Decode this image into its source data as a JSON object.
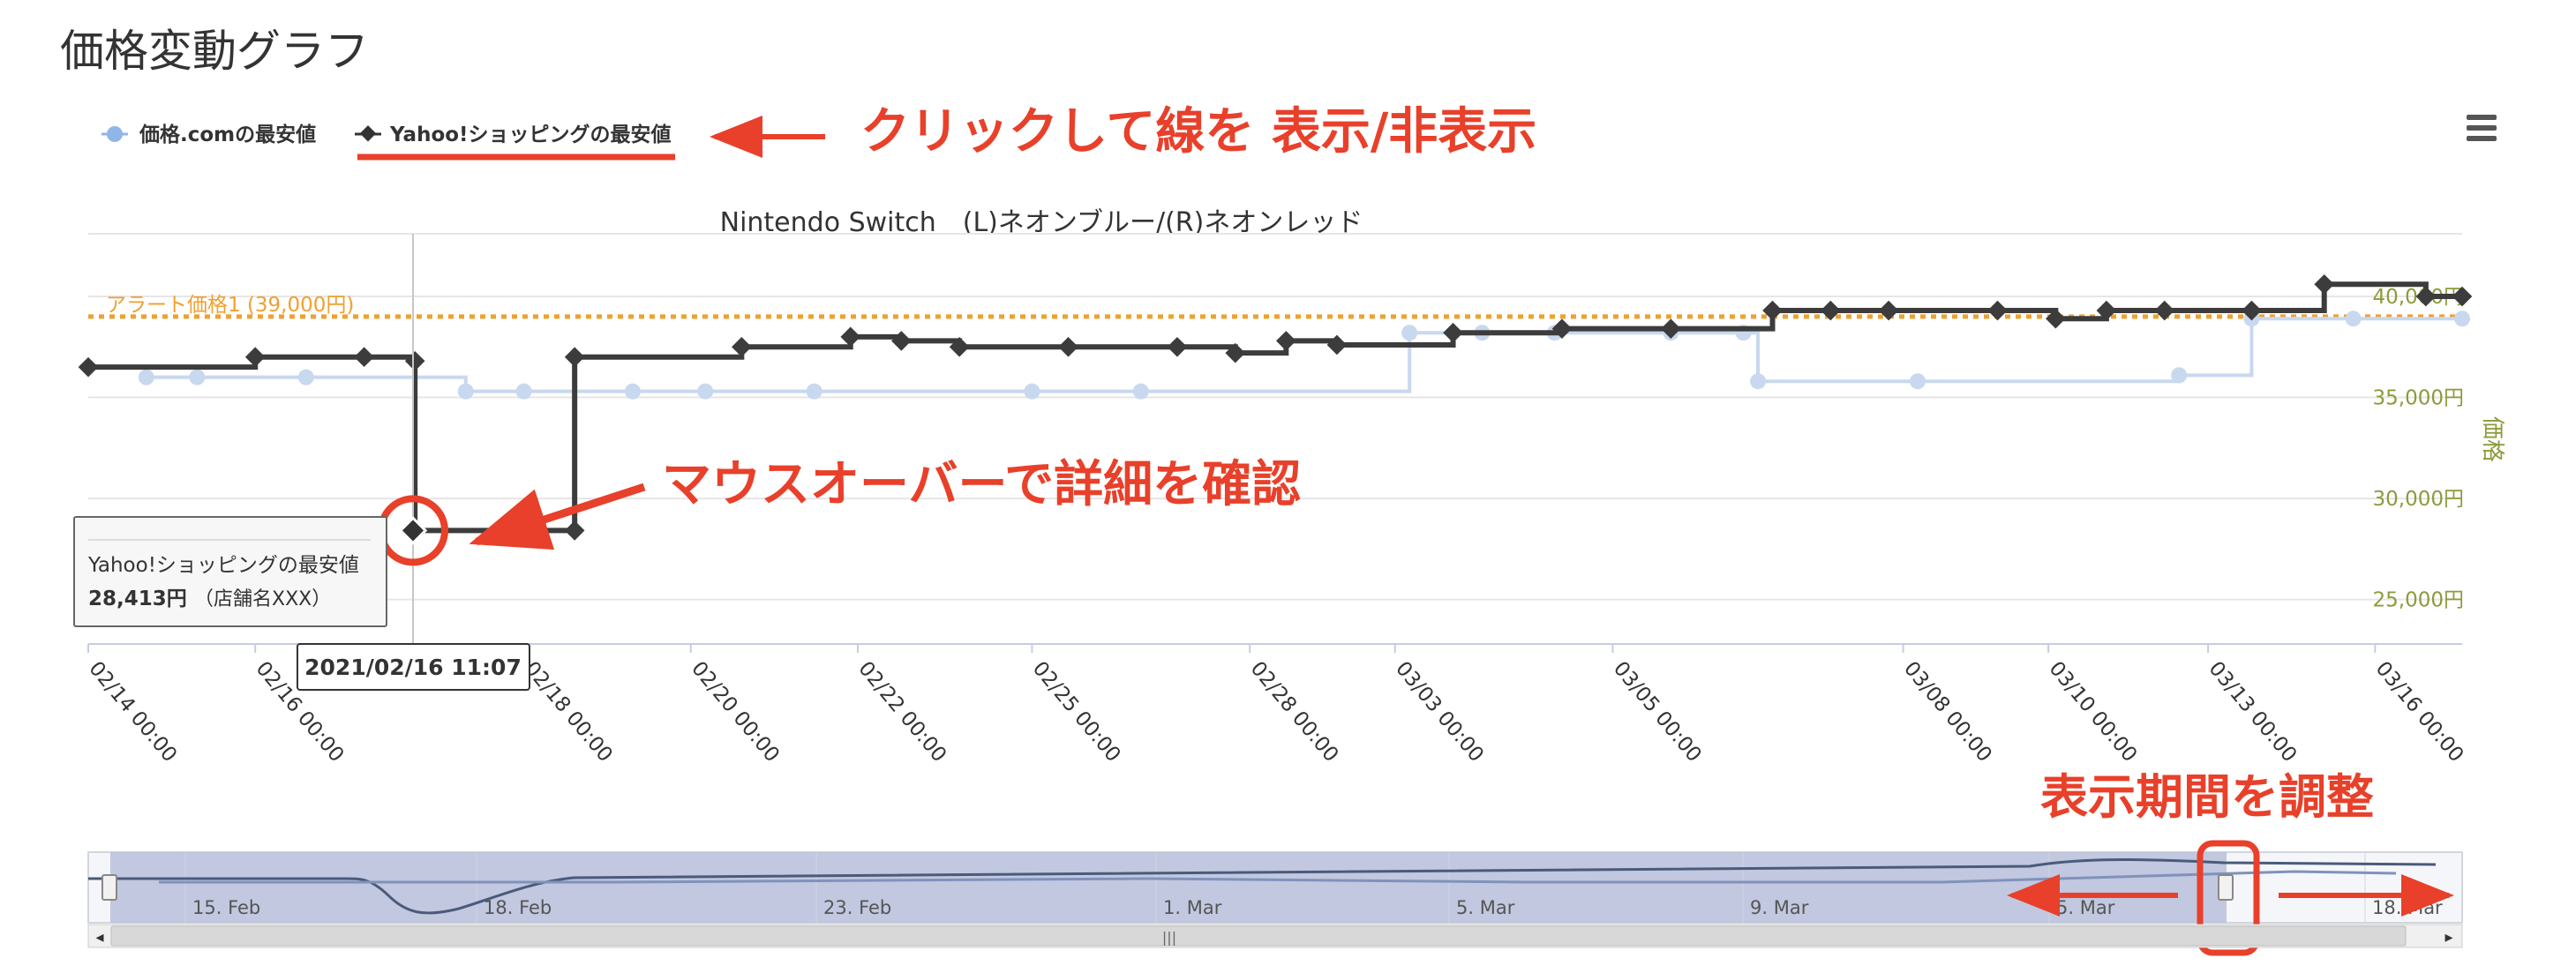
{
  "page": {
    "title": "価格変動グラフ"
  },
  "legend": {
    "items": [
      {
        "label": "価格.comの最安値",
        "color": "#8fb6e8"
      },
      {
        "label": "Yahoo!ショッピングの最安値",
        "color": "#333333"
      }
    ]
  },
  "annotations": {
    "toggle": "クリックして線を 表示/非表示",
    "hover": "マウスオーバーで詳細を確認",
    "range": "表示期間を調整",
    "color": "#e8402a"
  },
  "tooltip": {
    "series": "Yahoo!ショッピングの最安値",
    "price": "28,413円",
    "shop": "（店舗名XXX）",
    "date": "2021/02/16 11:07"
  },
  "chart_data": {
    "type": "line",
    "title": "Nintendo Switch　(L)ネオンブルー/(R)ネオンレッド",
    "ylabel": "価格",
    "ylim": [
      22800,
      43100
    ],
    "xlim": [
      0,
      32.7
    ],
    "x_tick_labels": [
      "02/14 00:00",
      "02/16 00:00",
      "02/18 00:00",
      "02/20 00:00",
      "02/22 00:00",
      "02/25 00:00",
      "02/28 00:00",
      "03/03 00:00",
      "03/05 00:00",
      "03/08 00:00",
      "03/10 00:00",
      "03/13 00:00",
      "03/16 00:00"
    ],
    "x_tick_values": [
      0,
      2.3,
      6,
      8.3,
      10.6,
      13,
      16,
      18,
      21,
      25,
      27,
      29.2,
      31.5
    ],
    "y_ticks": [
      {
        "value": 25000,
        "label": "25,000円"
      },
      {
        "value": 30000,
        "label": "30,000円"
      },
      {
        "value": 35000,
        "label": "35,000円"
      },
      {
        "value": 40000,
        "label": "40,000円"
      }
    ],
    "alert": {
      "value": 39000,
      "label": "アラート価格1 (39,000円)",
      "color": "#f0a030"
    },
    "series": [
      {
        "name": "価格.comの最安値",
        "color": "#c8d8ee",
        "points": [
          [
            0.8,
            36000
          ],
          [
            1.5,
            36000
          ],
          [
            3,
            36000
          ],
          [
            5.2,
            35300
          ],
          [
            6,
            35300
          ],
          [
            7.5,
            35300
          ],
          [
            8.5,
            35300
          ],
          [
            10,
            35300
          ],
          [
            13,
            35300
          ],
          [
            14.5,
            35300
          ],
          [
            18.2,
            38200
          ],
          [
            19.2,
            38200
          ],
          [
            20.2,
            38200
          ],
          [
            21.8,
            38200
          ],
          [
            22.8,
            38200
          ],
          [
            23,
            35800
          ],
          [
            25.2,
            35800
          ],
          [
            28.8,
            36100
          ],
          [
            29.8,
            38900
          ],
          [
            31.2,
            38900
          ],
          [
            32.7,
            38900
          ]
        ]
      },
      {
        "name": "Yahoo!ショッピングの最安値",
        "color": "#3c3c3c",
        "points": [
          [
            0,
            36500
          ],
          [
            2.3,
            37000
          ],
          [
            3.8,
            37000
          ],
          [
            4.5,
            36800
          ],
          [
            4.5,
            28413
          ],
          [
            6.7,
            28413
          ],
          [
            6.7,
            37000
          ],
          [
            9,
            37500
          ],
          [
            10.5,
            38000
          ],
          [
            11.2,
            37800
          ],
          [
            12,
            37500
          ],
          [
            13.5,
            37500
          ],
          [
            15,
            37500
          ],
          [
            15.8,
            37200
          ],
          [
            16.5,
            37800
          ],
          [
            17.2,
            37600
          ],
          [
            18.8,
            38200
          ],
          [
            20.3,
            38400
          ],
          [
            21.8,
            38400
          ],
          [
            23.2,
            39300
          ],
          [
            24,
            39300
          ],
          [
            24.8,
            39300
          ],
          [
            26.3,
            39300
          ],
          [
            27.1,
            38900
          ],
          [
            27.8,
            39300
          ],
          [
            28.6,
            39300
          ],
          [
            29.8,
            39300
          ],
          [
            30.8,
            40600
          ],
          [
            32.2,
            40000
          ],
          [
            32.7,
            40000
          ]
        ]
      }
    ]
  },
  "navigator": {
    "labels": [
      "15. Feb",
      "18. Feb",
      "23. Feb",
      "1. Mar",
      "5. Mar",
      "9. Mar",
      "5. Mar",
      "18. Mar"
    ],
    "handle_symbol": "|||",
    "left_arrow": "◂",
    "right_arrow": "▸"
  }
}
